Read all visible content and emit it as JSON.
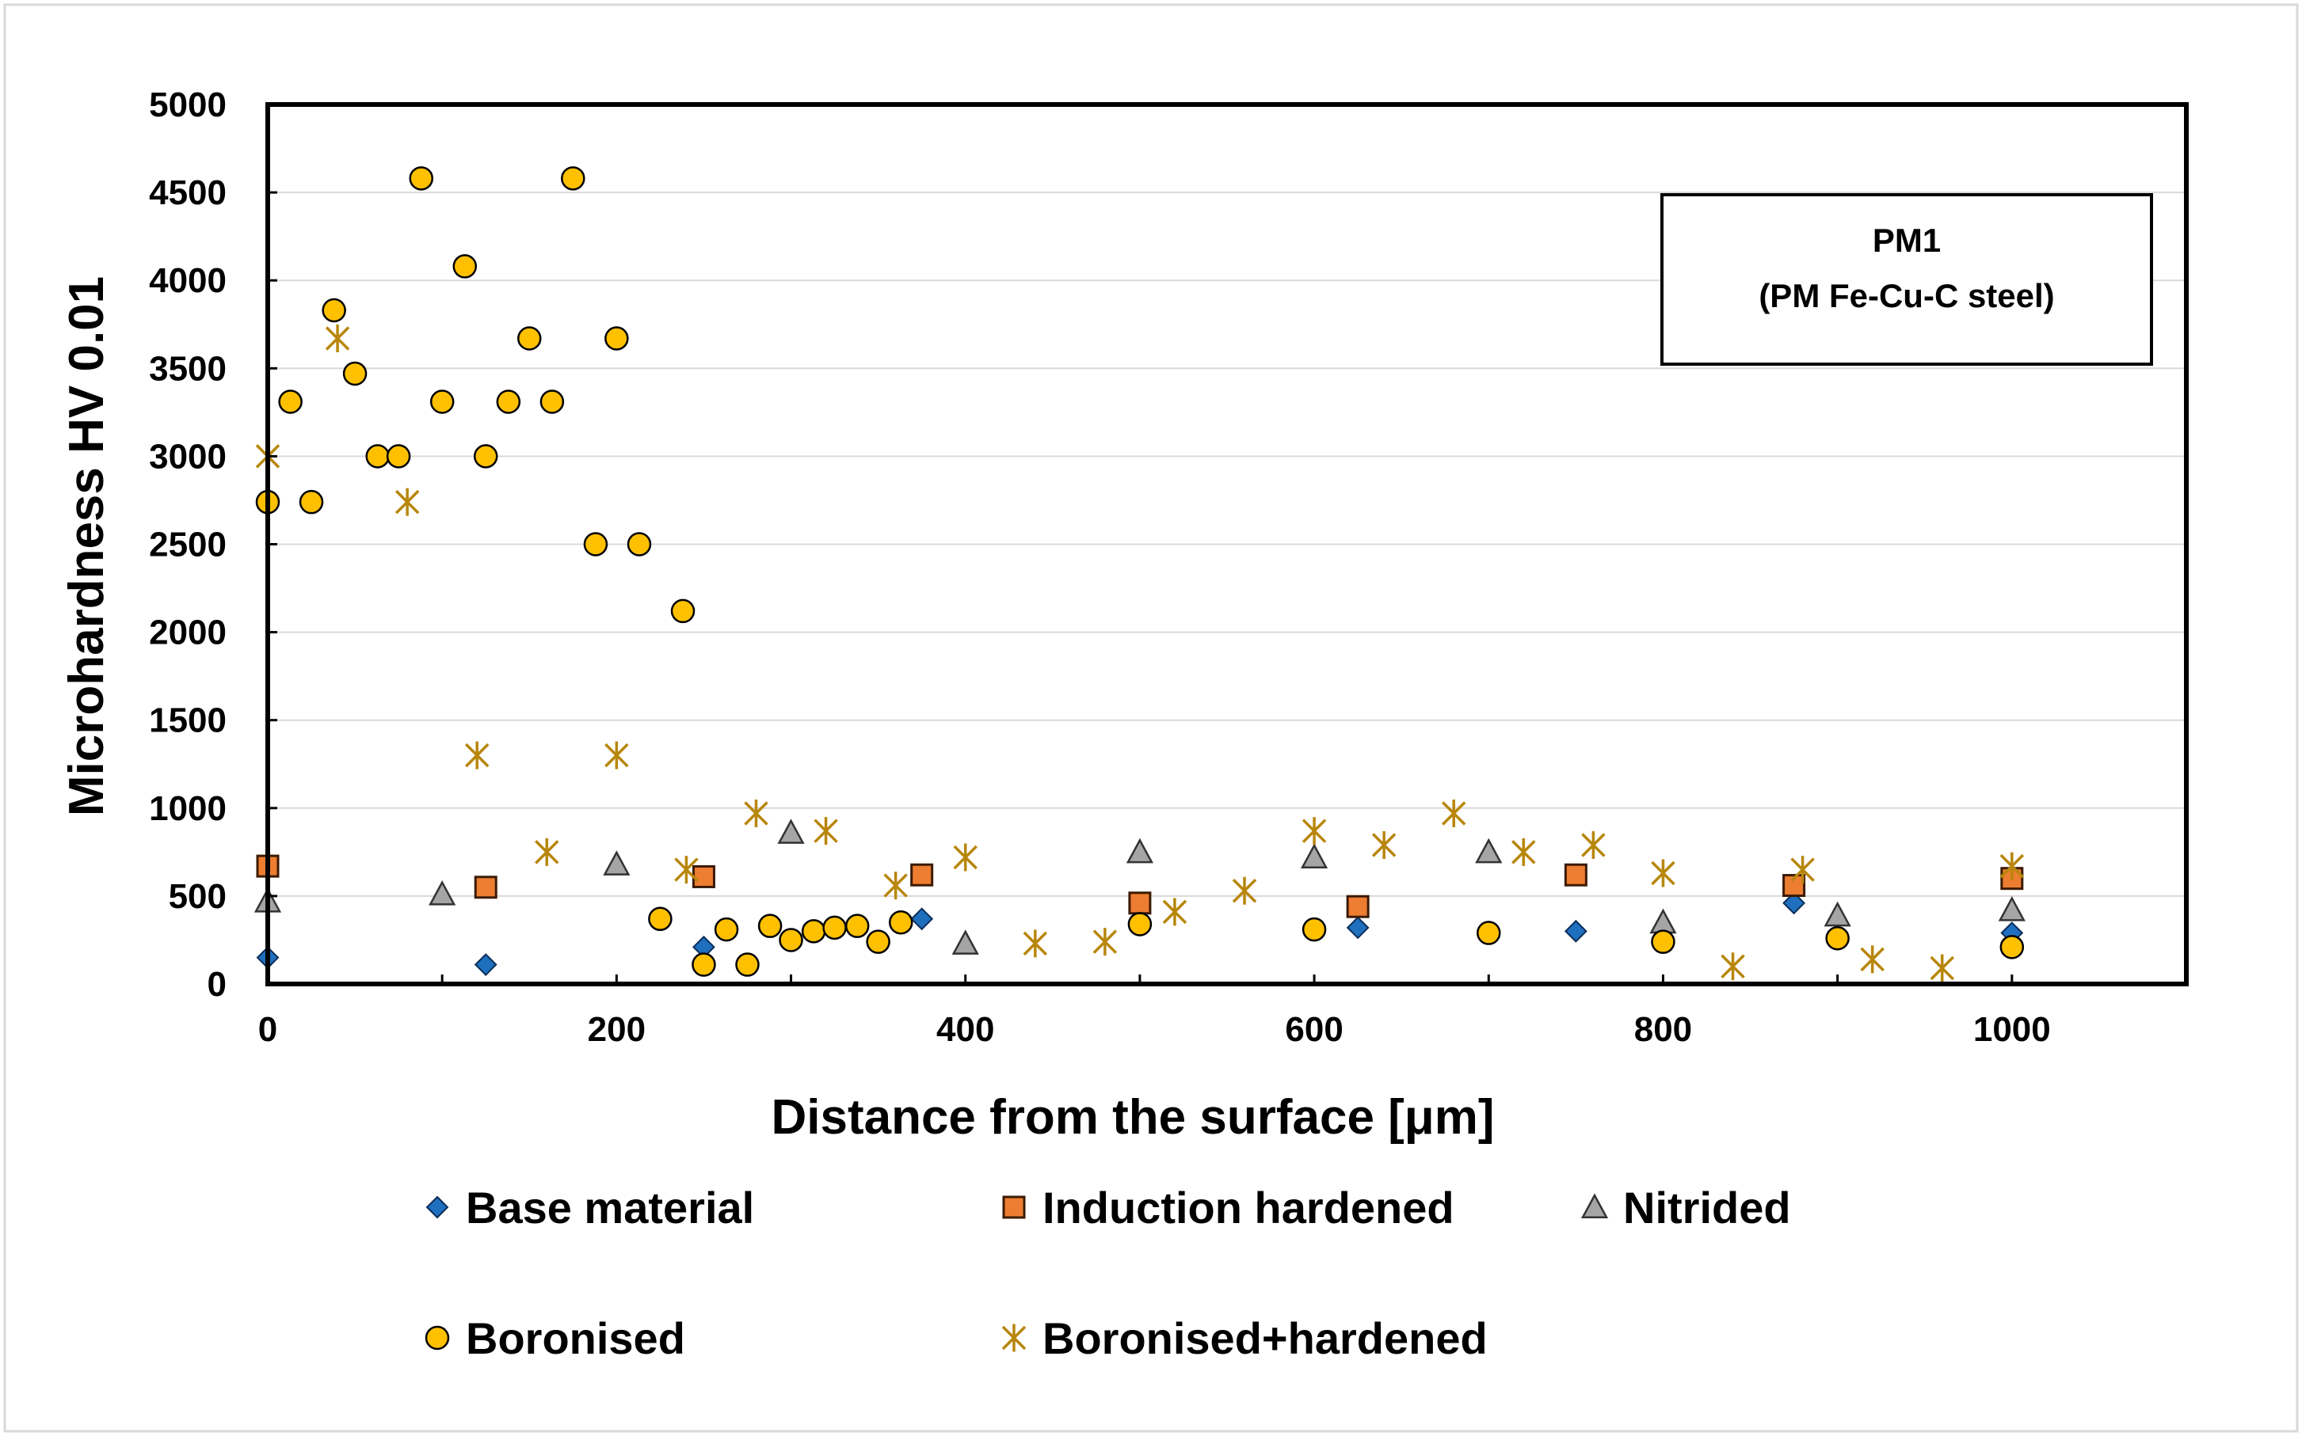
{
  "chart_data": {
    "type": "scatter",
    "title": "",
    "xlabel": "Distance from the surface [μm]",
    "ylabel": "Microhardness HV 0.01",
    "xlim": [
      0,
      1100
    ],
    "ylim": [
      0,
      5000
    ],
    "xticks": [
      "0",
      "200",
      "400",
      "600",
      "800",
      "1000"
    ],
    "yticks": [
      "0",
      "500",
      "1000",
      "1500",
      "2000",
      "2500",
      "3000",
      "3500",
      "4000",
      "4500",
      "5000"
    ],
    "grid": "horizontal",
    "legend_position": "bottom",
    "annotation": {
      "line1": "PM1",
      "line2": "(PM Fe-Cu-C steel)"
    },
    "series": [
      {
        "name": "Base material",
        "marker": "diamond",
        "color": "#1f6fbf",
        "points": [
          [
            0,
            150
          ],
          [
            125,
            110
          ],
          [
            250,
            210
          ],
          [
            375,
            370
          ],
          [
            625,
            320
          ],
          [
            750,
            300
          ],
          [
            875,
            460
          ],
          [
            1000,
            290
          ]
        ]
      },
      {
        "name": "Induction hardened",
        "marker": "square",
        "color": "#ed7d31",
        "points": [
          [
            0,
            670
          ],
          [
            125,
            550
          ],
          [
            250,
            610
          ],
          [
            375,
            620
          ],
          [
            500,
            460
          ],
          [
            625,
            440
          ],
          [
            750,
            620
          ],
          [
            875,
            560
          ],
          [
            1000,
            600
          ]
        ]
      },
      {
        "name": "Nitrided",
        "marker": "triangle",
        "color": "#a5a5a5",
        "points": [
          [
            0,
            470
          ],
          [
            100,
            510
          ],
          [
            200,
            680
          ],
          [
            300,
            860
          ],
          [
            400,
            230
          ],
          [
            500,
            750
          ],
          [
            600,
            720
          ],
          [
            700,
            750
          ],
          [
            800,
            350
          ],
          [
            900,
            390
          ],
          [
            1000,
            420
          ]
        ]
      },
      {
        "name": "Boronised",
        "marker": "circle",
        "color": "#ffc000",
        "points": [
          [
            0,
            2740
          ],
          [
            13,
            3310
          ],
          [
            25,
            2740
          ],
          [
            38,
            3830
          ],
          [
            50,
            3470
          ],
          [
            63,
            3000
          ],
          [
            75,
            3000
          ],
          [
            88,
            4580
          ],
          [
            100,
            3310
          ],
          [
            113,
            4080
          ],
          [
            125,
            3000
          ],
          [
            138,
            3310
          ],
          [
            150,
            3670
          ],
          [
            163,
            3310
          ],
          [
            175,
            4580
          ],
          [
            188,
            2500
          ],
          [
            200,
            3670
          ],
          [
            213,
            2500
          ],
          [
            238,
            2120
          ],
          [
            225,
            370
          ],
          [
            250,
            110
          ],
          [
            263,
            310
          ],
          [
            275,
            110
          ],
          [
            288,
            330
          ],
          [
            300,
            250
          ],
          [
            313,
            300
          ],
          [
            325,
            320
          ],
          [
            338,
            330
          ],
          [
            350,
            240
          ],
          [
            363,
            350
          ],
          [
            500,
            340
          ],
          [
            600,
            310
          ],
          [
            700,
            290
          ],
          [
            800,
            240
          ],
          [
            900,
            260
          ],
          [
            1000,
            210
          ]
        ]
      },
      {
        "name": "Boronised+hardened",
        "marker": "star",
        "color": "#b8860b",
        "points": [
          [
            0,
            3000
          ],
          [
            40,
            3670
          ],
          [
            80,
            2740
          ],
          [
            120,
            1300
          ],
          [
            160,
            750
          ],
          [
            200,
            1300
          ],
          [
            240,
            650
          ],
          [
            280,
            970
          ],
          [
            320,
            870
          ],
          [
            360,
            560
          ],
          [
            400,
            720
          ],
          [
            440,
            230
          ],
          [
            480,
            240
          ],
          [
            520,
            410
          ],
          [
            560,
            530
          ],
          [
            600,
            870
          ],
          [
            640,
            790
          ],
          [
            680,
            970
          ],
          [
            720,
            750
          ],
          [
            760,
            790
          ],
          [
            800,
            630
          ],
          [
            840,
            100
          ],
          [
            880,
            650
          ],
          [
            920,
            140
          ],
          [
            960,
            90
          ],
          [
            1000,
            670
          ]
        ]
      }
    ]
  }
}
